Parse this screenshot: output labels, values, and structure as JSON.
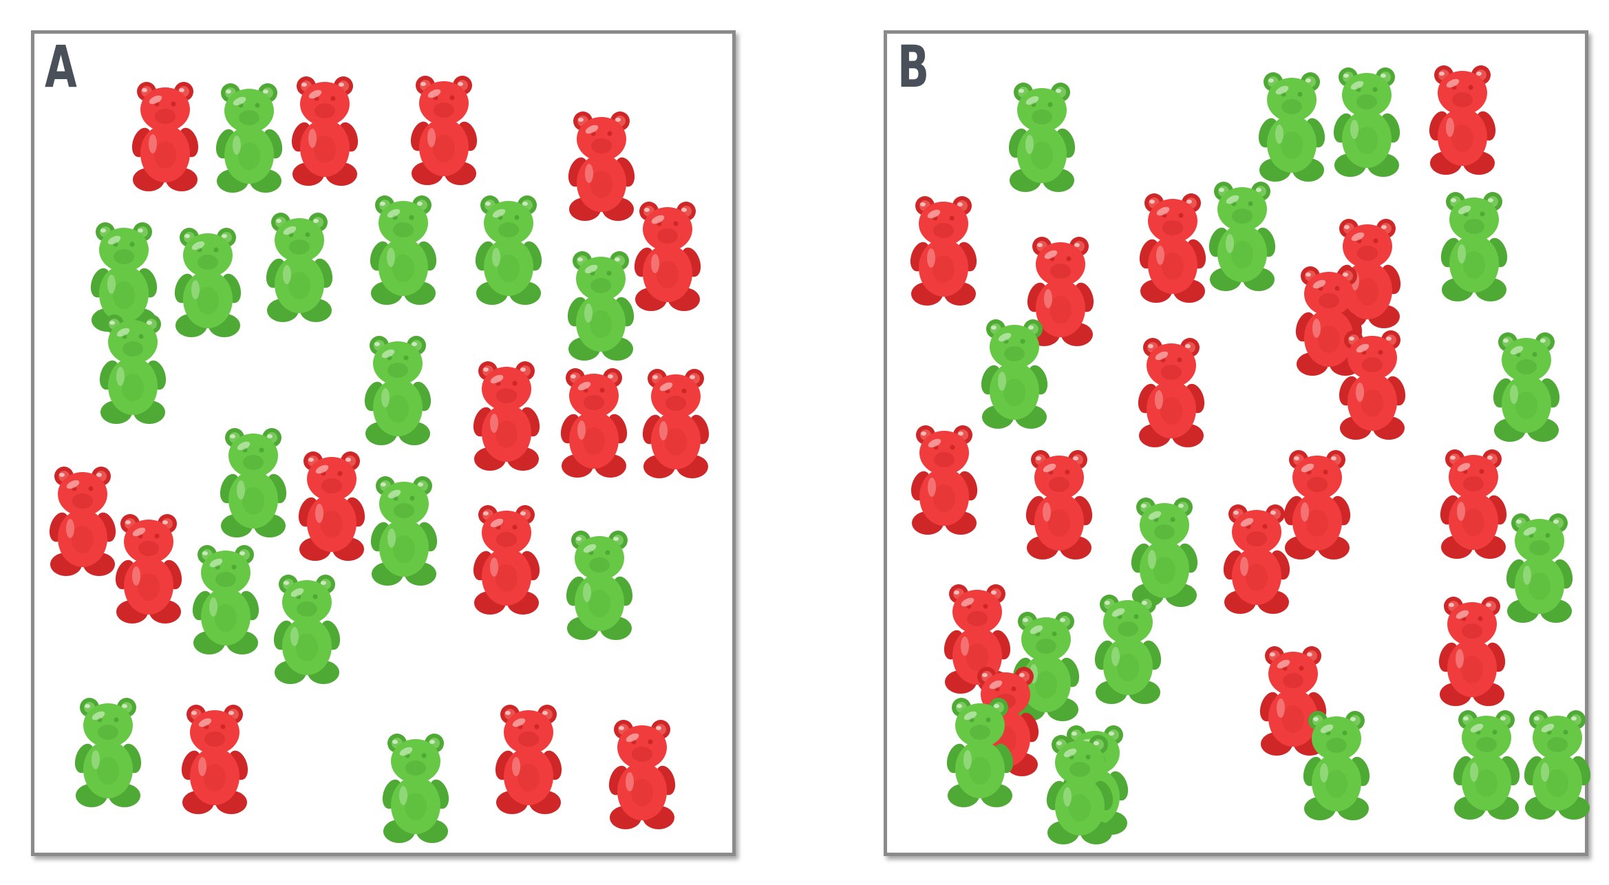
{
  "colors": {
    "red_bear": "#f03c3c",
    "red_bear_dark": "#cf2727",
    "red_bear_light": "#ff7a72",
    "green_bear": "#66c845",
    "green_bear_dark": "#4ea935",
    "green_bear_light": "#9be27a",
    "panel_border": "#8a8a8a",
    "label_text": "#4a505a"
  },
  "icons": {
    "bear": "gummy-bear-icon"
  },
  "panels": [
    {
      "label": "A",
      "bears": [
        "red",
        "green",
        "red",
        "red",
        "red",
        "green",
        "green",
        "green",
        "green",
        "green",
        "green",
        "red",
        "green",
        "green",
        "red",
        "red",
        "red",
        "green",
        "red",
        "red",
        "green",
        "red",
        "green",
        "red",
        "green",
        "green",
        "green",
        "red",
        "red",
        "green",
        "red"
      ]
    },
    {
      "label": "B",
      "bears": [
        "green",
        "green",
        "green",
        "red",
        "red",
        "green",
        "red",
        "green",
        "red",
        "red",
        "red",
        "green",
        "red",
        "red",
        "green",
        "red",
        "red",
        "green",
        "red",
        "red",
        "red",
        "red",
        "green",
        "green",
        "red",
        "red",
        "green",
        "red",
        "green",
        "green",
        "green",
        "green",
        "green",
        "green"
      ]
    }
  ]
}
